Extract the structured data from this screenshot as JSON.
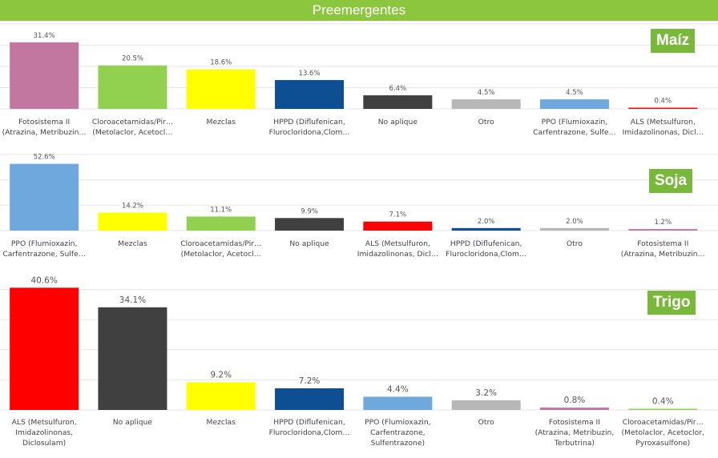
{
  "header": {
    "title": "Preemergentes"
  },
  "colors": {
    "banner": "#8cc63f",
    "badge": "#7ab83b",
    "fotosistema": "#c1779f",
    "cloroacetamidas": "#92d050",
    "mezclas": "#ffff00",
    "hppd": "#0e4f93",
    "no_aplique": "#404040",
    "otro": "#b7b7b7",
    "ppo": "#6fa8dc",
    "als": "#ff0000"
  },
  "chart_data": [
    {
      "type": "bar",
      "title": "Maíz",
      "categories": [
        "Fotosistema II\n(Atrazina, Metribuzin…",
        "Cloroacetamidas/Pir…\n(Metolaclor, Acetocl…",
        "Mezclas",
        "HPPD (Diflufenican,\nFlurocloridona,Clom…",
        "No aplique",
        "Otro",
        "PPO (Flumioxazin,\nCarfentrazone, Sulfe…",
        "ALS (Metsulfuron,\nImidazolinonas, Dicl…"
      ],
      "values": [
        31.4,
        20.5,
        18.6,
        13.6,
        6.4,
        4.5,
        4.5,
        0.4
      ],
      "labels": [
        "31.4%",
        "20.5%",
        "18.6%",
        "13.6%",
        "6.4%",
        "4.5%",
        "4.5%",
        "0.4%"
      ],
      "colors": [
        "#c1779f",
        "#92d050",
        "#ffff00",
        "#0e4f93",
        "#404040",
        "#b7b7b7",
        "#6fa8dc",
        "#ff0000"
      ],
      "ylim": [
        0,
        40
      ],
      "grid": true
    },
    {
      "type": "bar",
      "title": "Soja",
      "categories": [
        "PPO (Flumioxazin,\nCarfentrazone, Sulfe…",
        "Mezclas",
        "Cloroacetamidas/Pir…\n(Metolaclor, Acetocl…",
        "No aplique",
        "ALS (Metsulfuron,\nImidazolinonas, Dicl…",
        "HPPD (Diflufenican,\nFlurocloridona,Clom…",
        "Otro",
        "Fotosistema II\n(Atrazina, Metribuzin…"
      ],
      "values": [
        52.6,
        14.2,
        11.1,
        9.9,
        7.1,
        2.0,
        2.0,
        1.2
      ],
      "labels": [
        "52.6%",
        "14.2%",
        "11.1%",
        "9.9%",
        "7.1%",
        "2.0%",
        "2.0%",
        "1.2%"
      ],
      "colors": [
        "#6fa8dc",
        "#ffff00",
        "#92d050",
        "#404040",
        "#ff0000",
        "#0e4f93",
        "#b7b7b7",
        "#c1779f"
      ],
      "ylim": [
        0,
        60
      ],
      "grid": true
    },
    {
      "type": "bar",
      "title": "Trigo",
      "categories": [
        "ALS (Metsulfuron,\nImidazolinonas,\nDiclosulam)",
        "No aplique",
        "Mezclas",
        "HPPD (Diflufenican,\nFlurocloridona,Clom…",
        "PPO (Flumioxazin,\nCarfentrazone,\nSulfentrazone)",
        "Otro",
        "Fotosistema II\n(Atrazina, Metribuzin,\nTerbutrina)",
        "Cloroacetamidas/Pir…\n(Metolaclor, Acetoclor,\nPyroxasulfone)"
      ],
      "values": [
        40.6,
        34.1,
        9.2,
        7.2,
        4.4,
        3.2,
        0.8,
        0.4
      ],
      "labels": [
        "40.6%",
        "34.1%",
        "9.2%",
        "7.2%",
        "4.4%",
        "3.2%",
        "0.8%",
        "0.4%"
      ],
      "colors": [
        "#ff0000",
        "#404040",
        "#ffff00",
        "#0e4f93",
        "#6fa8dc",
        "#b7b7b7",
        "#c1779f",
        "#92d050"
      ],
      "ylim": [
        0,
        40
      ],
      "grid": true
    }
  ]
}
